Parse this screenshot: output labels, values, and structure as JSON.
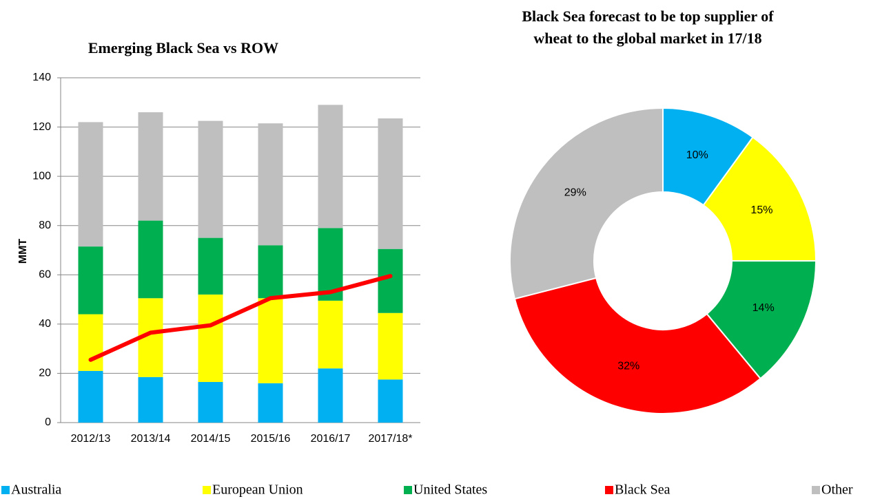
{
  "chart_data": [
    {
      "type": "bar",
      "stacked": true,
      "title": "Emerging Black Sea vs ROW",
      "y_label": "MMT",
      "categories": [
        "2012/13",
        "2013/14",
        "2014/15",
        "2015/16",
        "2016/17",
        "2017/18*"
      ],
      "series": [
        {
          "name": "Australia",
          "color": "#00b0f0",
          "values": [
            21,
            18.5,
            16.5,
            16,
            22,
            17.5
          ]
        },
        {
          "name": "European Union",
          "color": "#ffff00",
          "values": [
            23,
            32,
            35.5,
            34.5,
            27.5,
            27
          ]
        },
        {
          "name": "United States",
          "color": "#00b050",
          "values": [
            27.5,
            31.5,
            23,
            21.5,
            29.5,
            26
          ]
        },
        {
          "name": "Other",
          "color": "#bfbfbf",
          "values": [
            50.5,
            44,
            47.5,
            49.5,
            50,
            53
          ]
        },
        {
          "name": "Black Sea",
          "color": "#ff0000",
          "type": "line",
          "values": [
            25.5,
            36.5,
            39.5,
            50.5,
            53,
            59.5
          ]
        }
      ],
      "ylim": [
        0,
        140
      ],
      "yticks": [
        0,
        20,
        40,
        60,
        80,
        100,
        120,
        140
      ],
      "grid": true
    },
    {
      "type": "donut",
      "title": "Black Sea forecast to be top supplier of wheat to the global market in 17/18",
      "categories": [
        "Australia",
        "European Union",
        "United States",
        "Black Sea",
        "Other"
      ],
      "values": [
        10,
        15,
        14,
        32,
        29
      ],
      "value_labels": [
        "10%",
        "15%",
        "14%",
        "32%",
        "29%"
      ],
      "colors": [
        "#00b0f0",
        "#ffff00",
        "#00b050",
        "#ff0000",
        "#bfbfbf"
      ],
      "legend": "bottom"
    }
  ]
}
